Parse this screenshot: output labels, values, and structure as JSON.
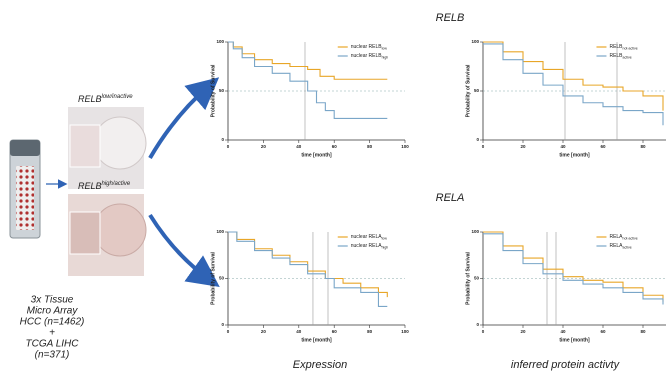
{
  "sections": [
    "RELB",
    "RELA"
  ],
  "columns": [
    "Expression",
    "inferred protein activty"
  ],
  "samples": [
    {
      "gene": "RELB",
      "state": "low/inactive"
    },
    {
      "gene": "RELB",
      "state": "high/active"
    }
  ],
  "cohort": [
    "3x Tissue",
    "Micro Array",
    "HCC (n=1462)",
    "+",
    "TCGA LIHC",
    "(n=371)"
  ],
  "chart_data": [
    {
      "type": "line",
      "xlabel": "time [month]",
      "ylabel": "Probability of Survival",
      "xlim": [
        0,
        100
      ],
      "ylim": [
        0,
        100
      ],
      "xticks": [
        0,
        20,
        40,
        60,
        80,
        100
      ],
      "yticks": [
        0,
        50,
        100
      ],
      "hline": 50,
      "vlines": [
        43.5
      ],
      "series": [
        {
          "name": "nuclear RELB",
          "subscript": "low",
          "color": "#e8a628",
          "x": [
            0,
            3,
            8,
            15,
            25,
            35,
            45,
            52,
            60,
            90
          ],
          "values": [
            100,
            95,
            88,
            82,
            78,
            75,
            72,
            65,
            62,
            62
          ]
        },
        {
          "name": "nuclear RELB",
          "subscript": "high",
          "color": "#7aa6c8",
          "x": [
            0,
            3,
            8,
            15,
            25,
            35,
            45,
            50,
            55,
            60,
            90
          ],
          "values": [
            100,
            93,
            84,
            75,
            68,
            60,
            50,
            38,
            30,
            22,
            22
          ]
        }
      ]
    },
    {
      "type": "line",
      "xlabel": "time [month]",
      "ylabel": "Probability of Survival",
      "xlim": [
        0,
        100
      ],
      "ylim": [
        0,
        100
      ],
      "xticks": [
        0,
        20,
        40,
        60,
        80
      ],
      "yticks": [
        0,
        50,
        100
      ],
      "hline": 50,
      "vlines": [
        41,
        67
      ],
      "series": [
        {
          "name": "RELB",
          "subscript": "not-active",
          "color": "#e8a628",
          "x": [
            0,
            10,
            20,
            30,
            40,
            50,
            60,
            70,
            80,
            90
          ],
          "values": [
            100,
            90,
            80,
            72,
            62,
            56,
            54,
            50,
            45,
            30
          ]
        },
        {
          "name": "RELB",
          "subscript": "active",
          "color": "#7aa6c8",
          "x": [
            0,
            10,
            20,
            30,
            40,
            50,
            60,
            70,
            80,
            90
          ],
          "values": [
            98,
            82,
            68,
            56,
            45,
            38,
            34,
            30,
            28,
            15
          ]
        }
      ]
    },
    {
      "type": "line",
      "xlabel": "time [month]",
      "ylabel": "Probability of Survival",
      "xlim": [
        0,
        100
      ],
      "ylim": [
        0,
        100
      ],
      "xticks": [
        0,
        20,
        40,
        60,
        80,
        100
      ],
      "yticks": [
        0,
        50,
        100
      ],
      "hline": 50,
      "vlines": [
        48,
        56.5
      ],
      "series": [
        {
          "name": "nuclear RELA",
          "subscript": "low",
          "color": "#e8a628",
          "x": [
            0,
            5,
            15,
            25,
            35,
            45,
            55,
            65,
            75,
            85,
            90
          ],
          "values": [
            100,
            92,
            82,
            75,
            68,
            58,
            50,
            45,
            40,
            35,
            30
          ]
        },
        {
          "name": "nuclear RELA",
          "subscript": "high",
          "color": "#7aa6c8",
          "x": [
            0,
            5,
            15,
            25,
            35,
            45,
            55,
            60,
            75,
            85,
            90
          ],
          "values": [
            100,
            90,
            80,
            72,
            65,
            55,
            50,
            40,
            35,
            20,
            20
          ]
        }
      ]
    },
    {
      "type": "line",
      "xlabel": "time [month]",
      "ylabel": "Probability of Survival",
      "xlim": [
        0,
        100
      ],
      "ylim": [
        0,
        100
      ],
      "xticks": [
        0,
        20,
        40,
        60,
        80
      ],
      "yticks": [
        0,
        50,
        100
      ],
      "hline": 50,
      "vlines": [
        32,
        36.5
      ],
      "series": [
        {
          "name": "RELA",
          "subscript": "not-active",
          "color": "#e8a628",
          "x": [
            0,
            10,
            20,
            30,
            40,
            50,
            60,
            70,
            80,
            90
          ],
          "values": [
            100,
            85,
            72,
            60,
            52,
            48,
            46,
            40,
            32,
            25
          ]
        },
        {
          "name": "RELA",
          "subscript": "active",
          "color": "#7aa6c8",
          "x": [
            0,
            10,
            20,
            30,
            40,
            50,
            60,
            70,
            80,
            90
          ],
          "values": [
            98,
            80,
            66,
            55,
            48,
            44,
            40,
            35,
            28,
            22
          ]
        }
      ]
    }
  ]
}
